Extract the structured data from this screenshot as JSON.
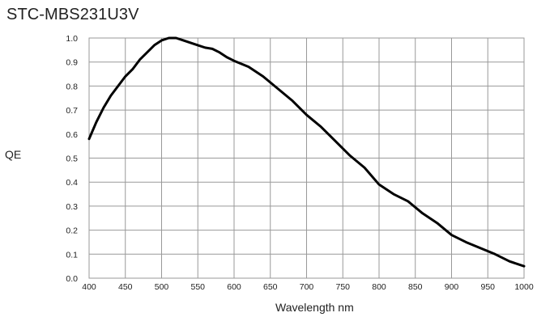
{
  "chart_data": {
    "type": "line",
    "title": "STC-MBS231U3V",
    "xlabel": "Wavelength nm",
    "ylabel": "QE",
    "xlim": [
      400,
      1000
    ],
    "ylim": [
      0,
      1.0
    ],
    "x_ticks": [
      400,
      450,
      500,
      550,
      600,
      650,
      700,
      750,
      800,
      850,
      900,
      950,
      1000
    ],
    "y_ticks": [
      0.0,
      0.1,
      0.2,
      0.3,
      0.4,
      0.5,
      0.6,
      0.7,
      0.8,
      0.9,
      1.0
    ],
    "x_tick_labels": [
      "400",
      "450",
      "500",
      "550",
      "600",
      "650",
      "700",
      "750",
      "800",
      "850",
      "900",
      "950",
      "1000"
    ],
    "y_tick_labels": [
      "0.0",
      "0.1",
      "0.2",
      "0.3",
      "0.4",
      "0.5",
      "0.6",
      "0.7",
      "0.8",
      "0.9",
      "1.0"
    ],
    "grid": true,
    "line_color": "#000000",
    "grid_color": "#999999",
    "series": [
      {
        "x": [
          400,
          410,
          420,
          430,
          440,
          450,
          460,
          470,
          480,
          490,
          500,
          510,
          520,
          530,
          540,
          550,
          560,
          570,
          580,
          590,
          600,
          620,
          640,
          660,
          680,
          700,
          720,
          740,
          760,
          780,
          800,
          820,
          840,
          860,
          880,
          900,
          920,
          940,
          960,
          980,
          1000
        ],
        "y": [
          0.58,
          0.65,
          0.71,
          0.76,
          0.8,
          0.84,
          0.87,
          0.91,
          0.94,
          0.97,
          0.99,
          1.0,
          1.0,
          0.99,
          0.98,
          0.97,
          0.96,
          0.955,
          0.94,
          0.92,
          0.905,
          0.88,
          0.84,
          0.79,
          0.74,
          0.68,
          0.63,
          0.57,
          0.51,
          0.46,
          0.39,
          0.35,
          0.32,
          0.27,
          0.23,
          0.18,
          0.15,
          0.125,
          0.1,
          0.07,
          0.05
        ]
      }
    ]
  }
}
